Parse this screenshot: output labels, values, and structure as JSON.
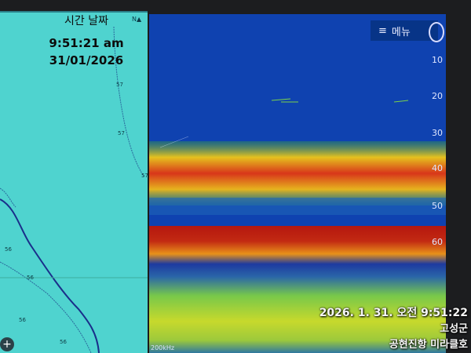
{
  "chart": {
    "time_label": "시간 날짜",
    "time": "9:51:21 am",
    "date": "31/01/2026",
    "compass": "N",
    "depth_marks": [
      "57",
      "57",
      "57",
      "56",
      "56",
      "56",
      "56"
    ],
    "zoom_icon": "plus-icon"
  },
  "sonar": {
    "menu_label": "메뉴",
    "menu_icon": "hamburger-icon",
    "depth_scale": [
      "10",
      "20",
      "30",
      "40",
      "50",
      "60"
    ],
    "frequency": "200kHz"
  },
  "photo_overlay": {
    "datetime": "2026. 1. 31. 오전 9:51:22",
    "location": "고성군",
    "vessel": "공현진항 미라클호"
  },
  "colors": {
    "chart_water": "#4fd3cf",
    "sonar_background": "#0f42b0",
    "overlay_text": "#f7f7f7"
  }
}
